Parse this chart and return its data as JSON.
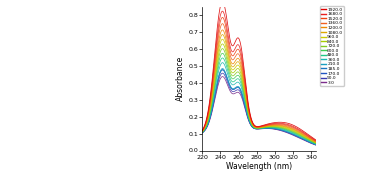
{
  "xlabel": "Wavelength (nm)",
  "ylabel": "Absorbance",
  "xlim": [
    220,
    345
  ],
  "ylim": [
    0.0,
    0.85
  ],
  "yticks": [
    0.0,
    0.1,
    0.2,
    0.3,
    0.4,
    0.5,
    0.6,
    0.7,
    0.8
  ],
  "xticks": [
    220,
    240,
    260,
    280,
    300,
    320,
    340
  ],
  "time_points": [
    3.0,
    90.0,
    170.0,
    185.0,
    210.0,
    360.0,
    480.0,
    600.0,
    720.0,
    840.0,
    960.0,
    1080.0,
    1200.0,
    1360.0,
    1520.0,
    1680.0,
    1920.0
  ],
  "legend_labels": [
    "1920.0",
    "1680.0",
    "1520.0",
    "1360.0",
    "1200.0",
    "1080.0",
    "960.0",
    "840.0",
    "720.0",
    "600.0",
    "480.0",
    "360.0",
    "210.0",
    "185.0",
    "170.0",
    "90.0",
    "3.0"
  ],
  "colors_list": [
    "#7b2d8b",
    "#3939b0",
    "#2255c0",
    "#1a75c0",
    "#1a9fc0",
    "#1ab8b0",
    "#20c888",
    "#40cc50",
    "#80cc20",
    "#a8cc00",
    "#cccc00",
    "#dda800",
    "#ee8800",
    "#f06020",
    "#f04010",
    "#e82020",
    "#dd0000"
  ],
  "fig_width": 3.78,
  "fig_height": 1.75,
  "dpi": 100
}
